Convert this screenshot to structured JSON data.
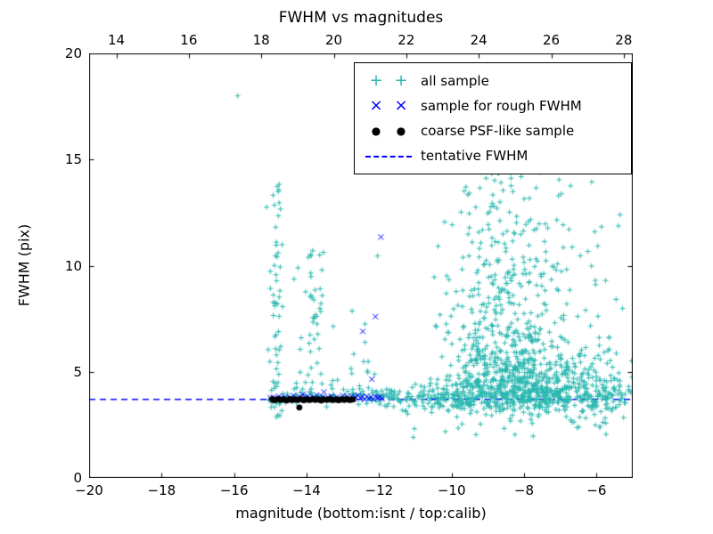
{
  "chart_data": {
    "type": "scatter",
    "title": "FWHM vs magnitudes",
    "xlabel": "magnitude (bottom:isnt / top:calib)",
    "ylabel": "FWHM (pix)",
    "xlim": [
      -20,
      -5
    ],
    "ylim": [
      0,
      20
    ],
    "grid": false,
    "background": "#ffffff",
    "frame_color": "#000000",
    "x_ticks_bottom": {
      "values": [
        -20,
        -18,
        -16,
        -14,
        -12,
        -10,
        -8,
        -6
      ],
      "labels": [
        "−20",
        "−18",
        "−16",
        "−14",
        "−12",
        "−10",
        "−8",
        "−6"
      ]
    },
    "x_ticks_top": {
      "values": [
        14,
        16,
        18,
        20,
        22,
        24,
        26,
        28
      ],
      "labels": [
        "14",
        "16",
        "18",
        "20",
        "22",
        "24",
        "26",
        "28"
      ]
    },
    "top_axis_offset": 33.25,
    "y_ticks": {
      "values": [
        0,
        5,
        10,
        15,
        20
      ],
      "labels": [
        "0",
        "5",
        "10",
        "15",
        "20"
      ]
    },
    "tentative_fwhm": 3.7,
    "legend": {
      "position": "upper right",
      "entries": [
        {
          "label": "all sample",
          "marker": "plus",
          "color": "#2ab8b0"
        },
        {
          "label": "sample for rough FWHM",
          "marker": "x",
          "color": "#0000ff"
        },
        {
          "label": "coarse PSF-like sample",
          "marker": "circle",
          "color": "#000000"
        },
        {
          "label": "tentative FWHM",
          "marker": "dashed-line",
          "color": "#0000ff"
        }
      ]
    },
    "series": [
      {
        "name": "all sample",
        "marker": "plus",
        "color": "#2ab8b0",
        "points": [
          [
            -15.9,
            18.0
          ],
          [
            -5.35,
            12.4
          ],
          [
            -6.05,
            11.6
          ],
          [
            -5.75,
            9.3
          ],
          [
            -6.3,
            7.9
          ]
        ],
        "clusters": [
          {
            "n": 500,
            "x": {
              "dist": "normal",
              "mean": -8.3,
              "sd": 1.35,
              "min": -11.9,
              "max": -5.05
            },
            "y": {
              "dist": "normal",
              "mean": 3.85,
              "sd": 0.4,
              "min": 2.4,
              "max": 5.4
            }
          },
          {
            "n": 160,
            "x": {
              "dist": "normal",
              "mean": -7.0,
              "sd": 0.9,
              "min": -8.8,
              "max": -5.0
            },
            "y": {
              "dist": "normal",
              "mean": 4.6,
              "sd": 1.0,
              "min": 2.2,
              "max": 7.5
            }
          },
          {
            "n": 430,
            "x": {
              "dist": "normal",
              "mean": -8.4,
              "sd": 0.85,
              "min": -10.6,
              "max": -5.8
            },
            "y": {
              "dist": "exp",
              "base": 4.4,
              "scale": 2.4,
              "max": 15.4
            }
          },
          {
            "n": 120,
            "x": {
              "dist": "normal",
              "mean": -8.3,
              "sd": 1.0,
              "min": -10.4,
              "max": -5.3
            },
            "y": {
              "dist": "uniform",
              "min": 8.5,
              "max": 15.4
            }
          },
          {
            "n": 60,
            "x": {
              "dist": "normal",
              "mean": -14.85,
              "sd": 0.12,
              "min": -15.2,
              "max": -14.5
            },
            "y": {
              "dist": "uniform",
              "min": 2.8,
              "max": 14.3
            }
          },
          {
            "n": 32,
            "x": {
              "dist": "normal",
              "mean": -13.82,
              "sd": 0.1,
              "min": -14.1,
              "max": -13.5
            },
            "y": {
              "dist": "uniform",
              "min": 3.9,
              "max": 10.8
            }
          },
          {
            "n": 40,
            "x": {
              "dist": "uniform",
              "min": -14.4,
              "max": -12.0
            },
            "y": {
              "dist": "exp",
              "base": 4.0,
              "scale": 2.0,
              "max": 12.5
            }
          },
          {
            "n": 70,
            "x": {
              "dist": "uniform",
              "min": -15.05,
              "max": -11.9
            },
            "y": {
              "dist": "normal",
              "mean": 3.82,
              "sd": 0.2,
              "min": 3.2,
              "max": 4.5
            }
          },
          {
            "n": 90,
            "x": {
              "dist": "uniform",
              "min": -11.9,
              "max": -9.6
            },
            "y": {
              "dist": "normal",
              "mean": 3.8,
              "sd": 0.25,
              "min": 3.0,
              "max": 4.8
            }
          },
          {
            "n": 55,
            "x": {
              "dist": "uniform",
              "min": -6.4,
              "max": -5.0
            },
            "y": {
              "dist": "normal",
              "mean": 3.9,
              "sd": 0.55,
              "min": 2.6,
              "max": 5.6
            }
          },
          {
            "n": 12,
            "x": {
              "dist": "uniform",
              "min": -6.6,
              "max": -5.1
            },
            "y": {
              "dist": "uniform",
              "min": 5.8,
              "max": 12.6
            }
          },
          {
            "n": 28,
            "x": {
              "dist": "uniform",
              "min": -11.6,
              "max": -5.6
            },
            "y": {
              "dist": "uniform",
              "min": 1.9,
              "max": 3.1
            }
          }
        ]
      },
      {
        "name": "sample for rough FWHM",
        "marker": "x",
        "color": "#0000ff",
        "points": [
          [
            -15.0,
            3.78
          ],
          [
            -14.92,
            3.8
          ],
          [
            -14.84,
            3.73
          ],
          [
            -14.76,
            3.84
          ],
          [
            -14.68,
            3.76
          ],
          [
            -14.6,
            3.8
          ],
          [
            -14.52,
            3.7
          ],
          [
            -14.44,
            3.78
          ],
          [
            -14.36,
            3.88
          ],
          [
            -14.28,
            3.74
          ],
          [
            -14.2,
            3.82
          ],
          [
            -14.12,
            3.7
          ],
          [
            -14.04,
            3.78
          ],
          [
            -13.96,
            3.85
          ],
          [
            -13.88,
            3.73
          ],
          [
            -13.8,
            3.8
          ],
          [
            -13.72,
            3.9
          ],
          [
            -13.64,
            3.75
          ],
          [
            -13.56,
            3.82
          ],
          [
            -13.48,
            3.7
          ],
          [
            -13.4,
            3.78
          ],
          [
            -13.32,
            3.86
          ],
          [
            -13.24,
            3.72
          ],
          [
            -13.16,
            3.8
          ],
          [
            -13.08,
            3.75
          ],
          [
            -13.0,
            3.88
          ],
          [
            -12.94,
            3.7
          ],
          [
            -12.88,
            3.8
          ],
          [
            -12.82,
            3.75
          ],
          [
            -12.76,
            3.86
          ],
          [
            -12.7,
            3.72
          ],
          [
            -12.64,
            3.8
          ],
          [
            -12.58,
            3.9
          ],
          [
            -12.52,
            3.76
          ],
          [
            -12.46,
            3.82
          ],
          [
            -12.4,
            3.7
          ],
          [
            -12.34,
            3.85
          ],
          [
            -12.28,
            3.74
          ],
          [
            -12.22,
            3.8
          ],
          [
            -12.16,
            3.72
          ],
          [
            -12.1,
            3.84
          ],
          [
            -12.04,
            3.78
          ],
          [
            -11.98,
            3.8
          ],
          [
            -11.92,
            3.74
          ],
          [
            -13.52,
            4.05
          ],
          [
            -14.1,
            3.95
          ],
          [
            -12.45,
            6.9
          ],
          [
            -12.1,
            7.6
          ],
          [
            -11.95,
            11.35
          ],
          [
            -12.2,
            4.65
          ]
        ]
      },
      {
        "name": "coarse PSF-like sample",
        "marker": "circle",
        "color": "#000000",
        "points": [
          [
            -14.95,
            3.7
          ],
          [
            -14.88,
            3.66
          ],
          [
            -14.8,
            3.72
          ],
          [
            -14.72,
            3.68
          ],
          [
            -14.64,
            3.7
          ],
          [
            -14.55,
            3.65
          ],
          [
            -14.47,
            3.71
          ],
          [
            -14.4,
            3.67
          ],
          [
            -14.32,
            3.7
          ],
          [
            -14.24,
            3.68
          ],
          [
            -14.16,
            3.72
          ],
          [
            -14.2,
            3.32
          ],
          [
            -14.08,
            3.66
          ],
          [
            -14.0,
            3.7
          ],
          [
            -13.92,
            3.67
          ],
          [
            -13.84,
            3.71
          ],
          [
            -13.76,
            3.68
          ],
          [
            -13.68,
            3.7
          ],
          [
            -13.6,
            3.65
          ],
          [
            -13.52,
            3.7
          ],
          [
            -13.44,
            3.68
          ],
          [
            -13.36,
            3.71
          ],
          [
            -13.28,
            3.67
          ],
          [
            -13.2,
            3.7
          ],
          [
            -13.12,
            3.66
          ],
          [
            -13.04,
            3.7
          ],
          [
            -12.96,
            3.68
          ],
          [
            -12.88,
            3.71
          ],
          [
            -12.8,
            3.67
          ],
          [
            -12.72,
            3.7
          ]
        ]
      },
      {
        "name": "tentative FWHM",
        "type": "hline",
        "y": 3.7,
        "style": "dashed",
        "color": "#0000ff"
      }
    ]
  }
}
